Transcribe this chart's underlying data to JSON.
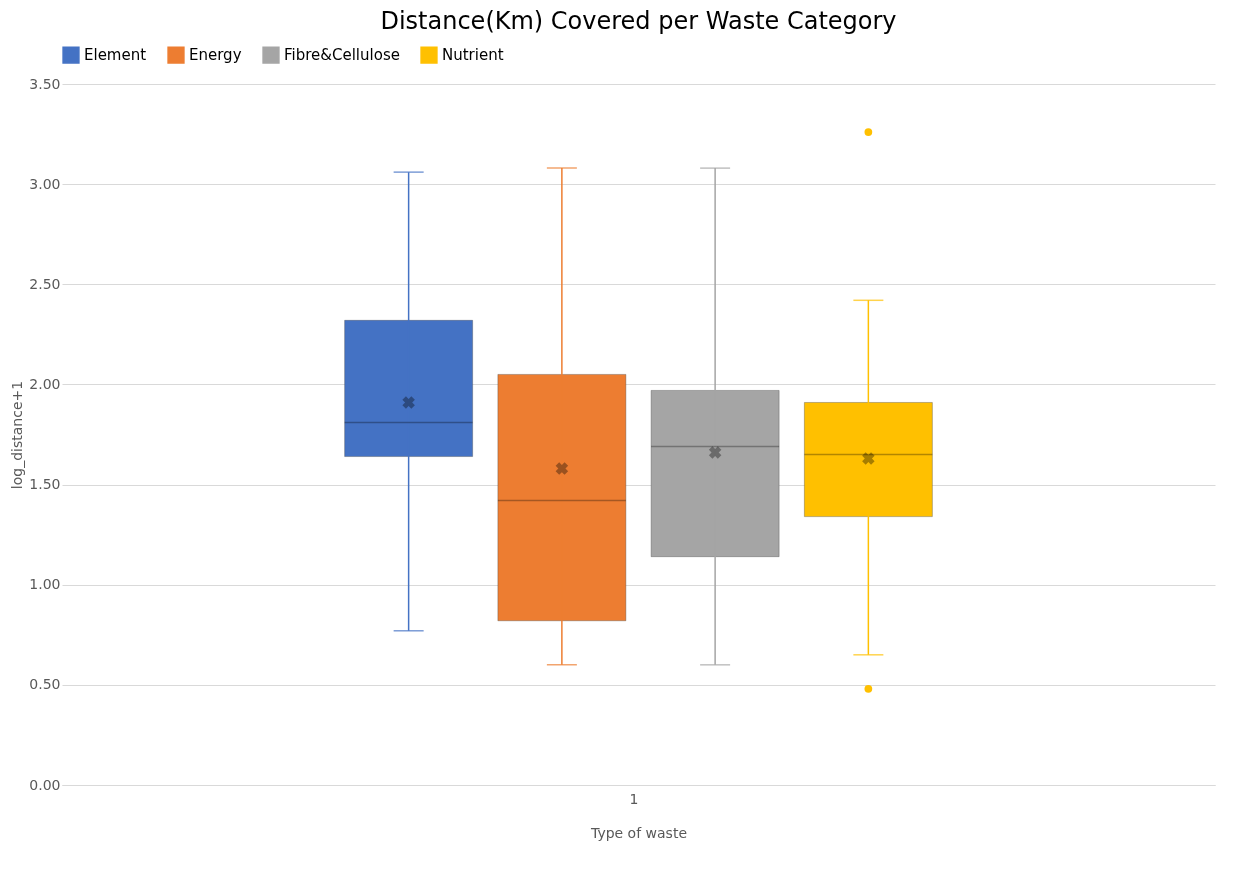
{
  "chart_data": {
    "type": "box",
    "title": "Distance(Km) Covered per Waste Category",
    "xlabel": "Type of waste",
    "ylabel": "log_distance+1",
    "categories": [
      "1"
    ],
    "series": [
      {
        "name": "Element",
        "color": "#4472c4",
        "boxes": [
          {
            "low": 0.77,
            "q1": 1.64,
            "median": 1.81,
            "q3": 2.32,
            "high": 3.06,
            "mean": 1.91
          }
        ]
      },
      {
        "name": "Energy",
        "color": "#ed7d31",
        "boxes": [
          {
            "low": 0.6,
            "q1": 0.82,
            "median": 1.42,
            "q3": 2.05,
            "high": 3.08,
            "mean": 1.58
          }
        ]
      },
      {
        "name": "Fibre&Cellulose",
        "color": "#a5a5a5",
        "boxes": [
          {
            "low": 0.6,
            "q1": 1.14,
            "median": 1.69,
            "q3": 1.97,
            "high": 3.08,
            "mean": 1.66
          }
        ]
      },
      {
        "name": "Nutrient",
        "color": "#ffc000",
        "boxes": [
          {
            "low": 0.65,
            "q1": 1.34,
            "median": 1.65,
            "q3": 1.91,
            "high": 2.42,
            "mean": 1.63,
            "outliers": [
              3.26,
              0.48
            ]
          }
        ]
      }
    ],
    "ylim": [
      0,
      3.5
    ],
    "yticks": [
      {
        "value": 0,
        "label": "0.00"
      },
      {
        "value": 0.5,
        "label": "0.50"
      },
      {
        "value": 1,
        "label": "1.00"
      },
      {
        "value": 1.5,
        "label": "1.50"
      },
      {
        "value": 2,
        "label": "2.00"
      },
      {
        "value": 2.5,
        "label": "2.50"
      },
      {
        "value": 3,
        "label": "3.00"
      },
      {
        "value": 3.5,
        "label": "3.50"
      }
    ],
    "grid": "y",
    "legend": "top"
  }
}
